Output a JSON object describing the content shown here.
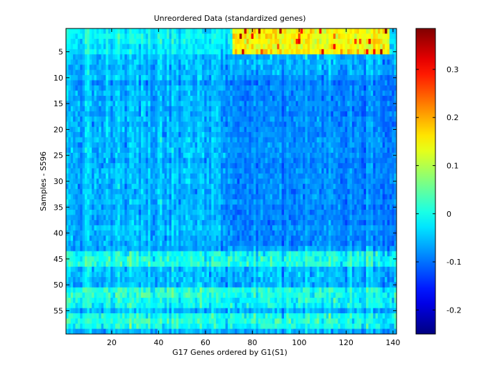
{
  "chart_data": {
    "type": "heatmap",
    "title": "Unreordered Data (standardized genes)",
    "xlabel": "G17 Genes ordered by G1(S1)",
    "ylabel": "Samples - S596",
    "x_range": [
      1,
      141
    ],
    "y_range": [
      1,
      59
    ],
    "x_ticks": [
      20,
      40,
      60,
      80,
      100,
      120,
      140
    ],
    "y_ticks": [
      5,
      10,
      15,
      20,
      25,
      30,
      35,
      40,
      45,
      50,
      55
    ],
    "y_axis_reversed": true,
    "n_cols": 141,
    "n_rows": 59,
    "colormap": "jet",
    "colorbar": {
      "range": [
        -0.25,
        0.385
      ],
      "ticks": [
        0.3,
        0.2,
        0.1,
        0,
        -0.1,
        -0.2
      ],
      "tick_labels": [
        "0.3",
        "0.2",
        "0.1",
        "0",
        "-0.1",
        "-0.2"
      ]
    },
    "value_summary": {
      "typical_value": -0.06,
      "high_block": {
        "rows": [
          1,
          5
        ],
        "cols": [
          72,
          138
        ],
        "approx_value": 0.15,
        "max": 0.38
      },
      "elevated_rows": [
        44,
        45,
        46,
        51,
        52,
        53,
        54,
        56,
        57,
        58
      ],
      "low_region": {
        "rows": [
          10,
          42
        ],
        "cols": [
          70,
          141
        ],
        "approx_value": -0.12
      }
    }
  }
}
